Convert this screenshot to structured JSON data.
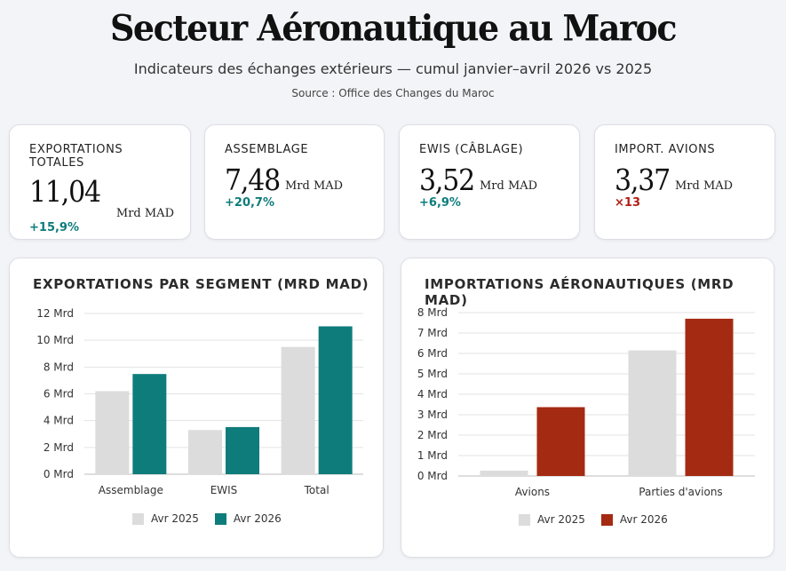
{
  "header": {
    "title": "Secteur Aéronautique au Maroc",
    "subtitle": "Indicateurs des échanges extérieurs — cumul janvier–avril 2026 vs 2025",
    "source": "Source : Office des Changes du Maroc"
  },
  "kpis": [
    {
      "label": "EXPORTATIONS TOTALES",
      "value": "11,04",
      "unit": "Mrd MAD",
      "delta": "+15,9%",
      "tone": "up"
    },
    {
      "label": "ASSEMBLAGE",
      "value": "7,48",
      "unit": "Mrd MAD",
      "delta": "+20,7%",
      "tone": "up"
    },
    {
      "label": "EWIS (CÂBLAGE)",
      "value": "3,52",
      "unit": "Mrd MAD",
      "delta": "+6,9%",
      "tone": "up"
    },
    {
      "label": "IMPORT. AVIONS",
      "value": "3,37",
      "unit": "Mrd MAD",
      "delta": "×13",
      "tone": "warn"
    }
  ],
  "colors": {
    "grey": "#dcdcdc",
    "teal": "#0e7c7b",
    "red": "#a52a12",
    "grid": "#e3e3e3",
    "axis": "#bdbdbd"
  },
  "chart_data": [
    {
      "type": "bar",
      "title": "EXPORTATIONS PAR SEGMENT (MRD MAD)",
      "categories": [
        "Assemblage",
        "EWIS",
        "Total"
      ],
      "series": [
        {
          "name": "Avr 2025",
          "values": [
            6.2,
            3.3,
            9.5
          ],
          "color": "#dcdcdc"
        },
        {
          "name": "Avr 2026",
          "values": [
            7.48,
            3.52,
            11.04
          ],
          "color": "#0e7c7b"
        }
      ],
      "ylim": [
        0,
        12
      ],
      "yticks": [
        0,
        2,
        4,
        6,
        8,
        10,
        12
      ],
      "ytick_labels": [
        "0 Mrd",
        "2 Mrd",
        "4 Mrd",
        "6 Mrd",
        "8 Mrd",
        "10 Mrd",
        "12 Mrd"
      ],
      "grid": true,
      "legend": "bottom-center"
    },
    {
      "type": "bar",
      "title": "IMPORTATIONS AÉRONAUTIQUES (MRD MAD)",
      "categories": [
        "Avions",
        "Parties d'avions"
      ],
      "series": [
        {
          "name": "Avr 2025",
          "values": [
            0.26,
            6.15
          ],
          "color": "#dcdcdc"
        },
        {
          "name": "Avr 2026",
          "values": [
            3.37,
            7.7
          ],
          "color": "#a52a12"
        }
      ],
      "ylim": [
        0,
        8
      ],
      "yticks": [
        0,
        1,
        2,
        3,
        4,
        5,
        6,
        7,
        8
      ],
      "ytick_labels": [
        "0 Mrd",
        "1 Mrd",
        "2 Mrd",
        "3 Mrd",
        "4 Mrd",
        "5 Mrd",
        "6 Mrd",
        "7 Mrd",
        "8 Mrd"
      ],
      "grid": true,
      "legend": "bottom-center"
    }
  ]
}
